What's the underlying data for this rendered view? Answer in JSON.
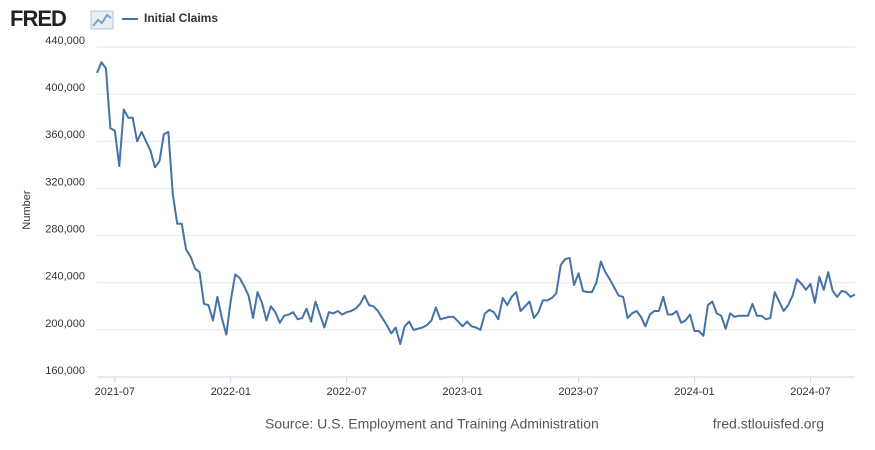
{
  "logo": "FRED",
  "chart_data": {
    "type": "line",
    "series": [
      {
        "name": "Initial Claims",
        "color": "#4572a7",
        "values": [
          418000,
          427000,
          422000,
          371000,
          369000,
          339000,
          387000,
          380000,
          380000,
          360000,
          368000,
          360000,
          352000,
          338000,
          343000,
          366000,
          368000,
          315000,
          290000,
          290000,
          268000,
          262000,
          252000,
          249000,
          222000,
          221000,
          208000,
          228000,
          210000,
          196000,
          225000,
          247000,
          244000,
          237000,
          229000,
          210000,
          232000,
          223000,
          208000,
          220000,
          215000,
          206000,
          212000,
          213000,
          215000,
          209000,
          210000,
          218000,
          207000,
          224000,
          213000,
          202000,
          215000,
          214000,
          216000,
          213000,
          215000,
          216000,
          218000,
          222000,
          229000,
          221000,
          220000,
          216000,
          210000,
          204000,
          197000,
          202000,
          188000,
          203000,
          207000,
          200000,
          201000,
          202000,
          204000,
          208000,
          219000,
          209000,
          210000,
          211000,
          211000,
          207000,
          203000,
          207000,
          203000,
          202000,
          200000,
          214000,
          217000,
          215000,
          209000,
          227000,
          221000,
          228000,
          232000,
          216000,
          220000,
          224000,
          210000,
          215000,
          225000,
          225000,
          227000,
          231000,
          255000,
          260000,
          261000,
          238000,
          248000,
          233000,
          232000,
          232000,
          240000,
          258000,
          249000,
          243000,
          236000,
          229000,
          228000,
          210000,
          214000,
          216000,
          211000,
          203000,
          213000,
          216000,
          216000,
          228000,
          213000,
          213000,
          216000,
          206000,
          208000,
          213000,
          199000,
          199000,
          195000,
          221000,
          224000,
          214000,
          212000,
          201000,
          214000,
          211000,
          212000,
          212000,
          212000,
          222000,
          212000,
          212000,
          209000,
          210000,
          232000,
          224000,
          216000,
          221000,
          229000,
          243000,
          239000,
          234000,
          239000,
          223000,
          245000,
          234000,
          249000,
          233000,
          228000,
          233000,
          232000,
          228000,
          230000
        ]
      }
    ],
    "xlim": [
      0,
      170
    ],
    "xticks": [
      {
        "value": 4,
        "label": "2021-07"
      },
      {
        "value": 30,
        "label": "2022-01"
      },
      {
        "value": 56,
        "label": "2022-07"
      },
      {
        "value": 82,
        "label": "2023-01"
      },
      {
        "value": 108,
        "label": "2023-07"
      },
      {
        "value": 134,
        "label": "2024-01"
      },
      {
        "value": 160,
        "label": "2024-07"
      }
    ],
    "ylim": [
      160000,
      440000
    ],
    "yticks": [
      {
        "value": 160000,
        "label": "160,000"
      },
      {
        "value": 200000,
        "label": "200,000"
      },
      {
        "value": 240000,
        "label": "240,000"
      },
      {
        "value": 280000,
        "label": "280,000"
      },
      {
        "value": 320000,
        "label": "320,000"
      },
      {
        "value": 360000,
        "label": "360,000"
      },
      {
        "value": 400000,
        "label": "400,000"
      },
      {
        "value": 440000,
        "label": "440,000"
      }
    ],
    "ylabel": "Number",
    "grid": true,
    "source": "Source: U.S. Employment and Training Administration",
    "site": "fred.stlouisfed.org"
  }
}
